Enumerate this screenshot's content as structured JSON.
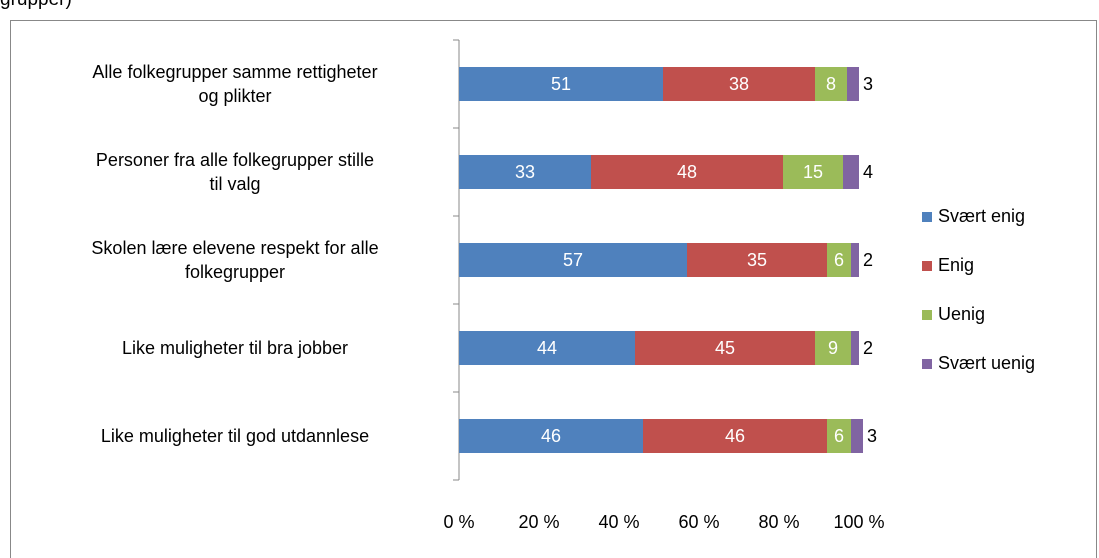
{
  "chart_data": {
    "type": "stacked_barh",
    "title": "grupper)",
    "categories": [
      "Alle folkegrupper samme rettigheter\nog plikter",
      "Personer fra alle folkegrupper stille\ntil valg",
      "Skolen lære elevene respekt for alle\nfolkegrupper",
      "Like muligheter til bra jobber",
      "Like muligheter til god utdannlese"
    ],
    "series": [
      {
        "name": "Svært enig",
        "color": "#4f81bd",
        "values": [
          51,
          33,
          57,
          44,
          46
        ]
      },
      {
        "name": "Enig",
        "color": "#c0504d",
        "values": [
          38,
          48,
          35,
          45,
          46
        ]
      },
      {
        "name": "Uenig",
        "color": "#9bbb59",
        "values": [
          8,
          15,
          6,
          9,
          6
        ]
      },
      {
        "name": "Svært uenig",
        "color": "#8064a2",
        "values": [
          3,
          4,
          2,
          2,
          3
        ]
      }
    ],
    "xlim": [
      0,
      100
    ],
    "xticks": [
      {
        "value": 0,
        "label": "0 %"
      },
      {
        "value": 20,
        "label": "20 %"
      },
      {
        "value": 40,
        "label": "40 %"
      },
      {
        "value": 60,
        "label": "60 %"
      },
      {
        "value": 80,
        "label": "80 %"
      },
      {
        "value": 100,
        "label": "100 %"
      }
    ],
    "legend": "right"
  }
}
